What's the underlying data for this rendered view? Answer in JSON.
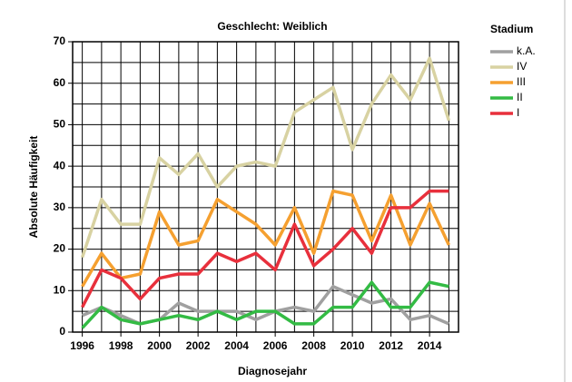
{
  "chart_data": {
    "type": "line",
    "title": "Geschlecht: Weiblich",
    "x_label": "Diagnosejahr",
    "y_label": "Absolute Häufigkeit",
    "legend_title": "Stadium",
    "legend": "right",
    "grid": true,
    "x": [
      1996,
      1997,
      1998,
      1999,
      2000,
      2001,
      2002,
      2003,
      2004,
      2005,
      2006,
      2007,
      2008,
      2009,
      2010,
      2011,
      2012,
      2013,
      2014,
      2015
    ],
    "xlim": [
      1995.5,
      2015.5
    ],
    "xticks": [
      1996,
      1998,
      2000,
      2002,
      2004,
      2006,
      2008,
      2010,
      2012,
      2014
    ],
    "x_minor_ticks": [
      1997,
      1999,
      2001,
      2003,
      2005,
      2007,
      2009,
      2011,
      2013,
      2015
    ],
    "ylim": [
      0,
      70
    ],
    "yticks": [
      0,
      10,
      20,
      30,
      40,
      50,
      60,
      70
    ],
    "y_minor_ticks": [
      5,
      15,
      25,
      35,
      45,
      55,
      65
    ],
    "series": [
      {
        "name": "k.A.",
        "color": "#a0a0a0",
        "values": [
          4,
          6,
          4,
          2,
          3,
          7,
          5,
          5,
          5,
          3,
          5,
          6,
          5,
          11,
          9,
          7,
          8,
          3,
          4,
          2
        ]
      },
      {
        "name": "IV",
        "color": "#d8d2a2",
        "values": [
          18,
          32,
          26,
          26,
          42,
          38,
          43,
          35,
          40,
          41,
          40,
          53,
          56,
          59,
          44,
          55,
          62,
          56,
          66,
          51
        ]
      },
      {
        "name": "III",
        "color": "#f5a030",
        "values": [
          11,
          19,
          13,
          14,
          29,
          21,
          22,
          32,
          29,
          26,
          21,
          30,
          19,
          34,
          33,
          22,
          33,
          21,
          31,
          21
        ]
      },
      {
        "name": "II",
        "color": "#33bb44",
        "values": [
          1,
          6,
          3,
          2,
          3,
          4,
          3,
          5,
          3,
          5,
          5,
          2,
          2,
          6,
          6,
          12,
          6,
          6,
          12,
          11
        ]
      },
      {
        "name": "I",
        "color": "#e8303c",
        "values": [
          6,
          15,
          13,
          8,
          13,
          14,
          14,
          19,
          17,
          19,
          15,
          26,
          16,
          20,
          25,
          19,
          30,
          30,
          34,
          34
        ]
      }
    ]
  }
}
